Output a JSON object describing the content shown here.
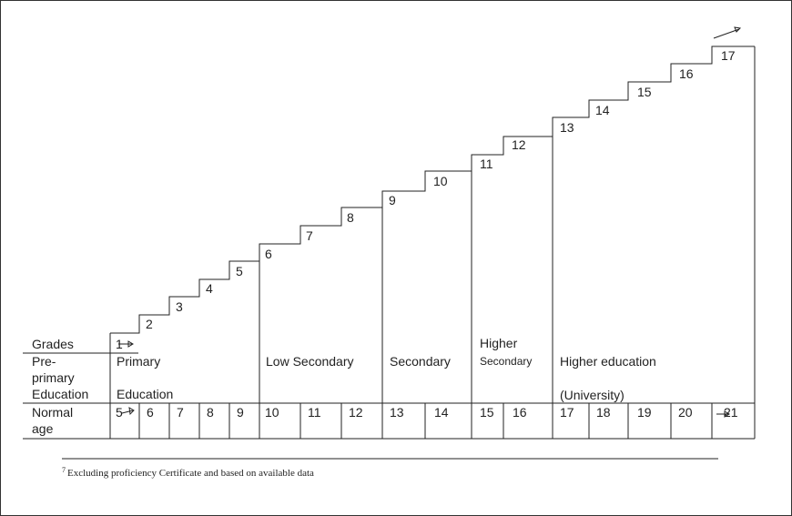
{
  "diagram": {
    "grades_label": "Grades",
    "grades": [
      "1",
      "2",
      "3",
      "4",
      "5",
      "6",
      "7",
      "8",
      "9",
      "10",
      "11",
      "12",
      "13",
      "14",
      "15",
      "16",
      "17"
    ],
    "ages_label_line1": "Normal",
    "ages_label_line2": "age",
    "ages": [
      "5",
      "6",
      "7",
      "8",
      "9",
      "10",
      "11",
      "12",
      "13",
      "14",
      "15",
      "16",
      "17",
      "18",
      "19",
      "20",
      "21"
    ],
    "stages": {
      "preprimary": [
        "Pre-",
        "primary",
        "Education"
      ],
      "primary": [
        "Primary",
        "Education"
      ],
      "low_secondary": "Low Secondary",
      "secondary": "Secondary",
      "higher_secondary": [
        "Higher",
        "Secondary"
      ],
      "higher_education": [
        "Higher education",
        "(University)"
      ]
    },
    "footnote_marker": "7",
    "footnote": "Excluding proficiency Certificate and based on available data"
  }
}
